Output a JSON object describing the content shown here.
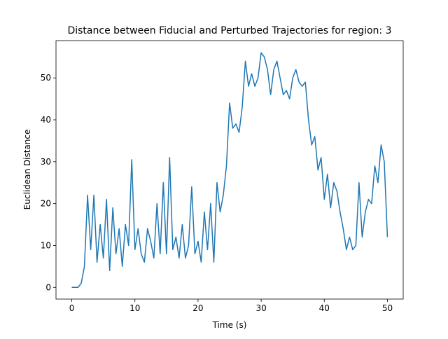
{
  "chart_data": {
    "type": "line",
    "title": "Distance between Fiducial and Perturbed Trajectories for region: 3",
    "xlabel": "Time (s)",
    "ylabel": "Euclidean Distance",
    "x": [
      0,
      0.5,
      1,
      1.5,
      2,
      2.5,
      3,
      3.5,
      4,
      4.5,
      5,
      5.5,
      6,
      6.5,
      7,
      7.5,
      8,
      8.5,
      9,
      9.5,
      10,
      10.5,
      11,
      11.5,
      12,
      12.5,
      13,
      13.5,
      14,
      14.5,
      15,
      15.5,
      16,
      16.5,
      17,
      17.5,
      18,
      18.5,
      19,
      19.5,
      20,
      20.5,
      21,
      21.5,
      22,
      22.5,
      23,
      23.5,
      24,
      24.5,
      25,
      25.5,
      26,
      26.5,
      27,
      27.5,
      28,
      28.5,
      29,
      29.5,
      30,
      30.5,
      31,
      31.5,
      32,
      32.5,
      33,
      33.5,
      34,
      34.5,
      35,
      35.5,
      36,
      36.5,
      37,
      37.5,
      38,
      38.5,
      39,
      39.5,
      40,
      40.5,
      41,
      41.5,
      42,
      42.5,
      43,
      43.5,
      44,
      44.5,
      45,
      45.5,
      46,
      46.5,
      47,
      47.5,
      48,
      48.5,
      49,
      49.5,
      50
    ],
    "series": [
      {
        "color": "#1f77b4",
        "values": [
          0,
          0,
          0,
          1,
          5,
          22,
          9,
          22,
          6,
          15,
          7,
          21,
          4,
          19,
          8,
          14,
          5,
          15,
          10,
          30.5,
          9,
          14,
          8,
          6,
          14,
          11,
          7,
          20,
          8,
          25,
          8,
          31,
          9,
          12,
          7,
          15,
          7,
          10,
          24,
          8,
          11,
          6,
          18,
          9,
          20,
          6,
          25,
          18,
          22,
          29,
          44,
          38,
          39,
          37,
          43,
          54,
          48,
          51,
          48,
          50,
          56,
          55,
          52,
          46,
          52,
          54,
          50,
          46,
          47,
          45,
          50,
          52,
          49,
          48,
          49,
          40,
          34,
          36,
          28,
          31,
          21,
          27,
          19,
          25,
          23,
          18,
          14,
          9,
          12,
          9,
          10,
          25,
          12,
          18,
          21,
          20,
          29,
          25,
          34,
          30,
          12
        ]
      }
    ],
    "xlim": [
      -2.5,
      52.5
    ],
    "ylim": [
      -2.8,
      58.9
    ],
    "xticks": [
      0,
      10,
      20,
      30,
      40,
      50
    ],
    "yticks": [
      0,
      10,
      20,
      30,
      40,
      50
    ]
  }
}
